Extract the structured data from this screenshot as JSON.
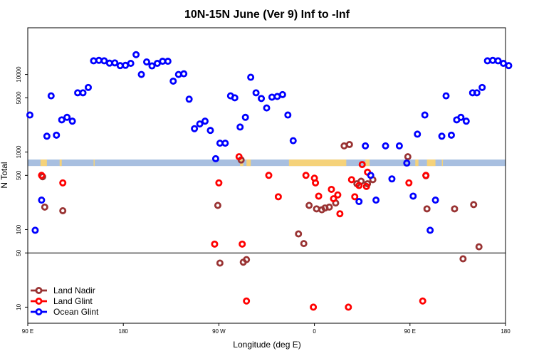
{
  "chart_data": {
    "type": "scatter",
    "title": "10N-15N June (Ver 9)   Inf to -Inf",
    "xlabel": "Longitude (deg E)",
    "ylabel": "N Total",
    "x_scale": "linear",
    "y_scale": "log",
    "xlim": [
      90,
      540
    ],
    "ylim": [
      6.2,
      40000
    ],
    "x_ticks": [
      {
        "value": 90,
        "label": "90 E"
      },
      {
        "value": 180,
        "label": "180"
      },
      {
        "value": 270,
        "label": "90 W"
      },
      {
        "value": 360,
        "label": "0"
      },
      {
        "value": 450,
        "label": "90 E"
      },
      {
        "value": 540,
        "label": "180"
      }
    ],
    "y_ticks": [
      {
        "value": 10,
        "label": "10"
      },
      {
        "value": 50,
        "label": "50"
      },
      {
        "value": 100,
        "label": "100"
      },
      {
        "value": 500,
        "label": "500"
      },
      {
        "value": 1000,
        "label": "1000"
      },
      {
        "value": 5000,
        "label": "5000"
      },
      {
        "value": 10000,
        "label": "10000"
      }
    ],
    "reference_line_y": 50,
    "grid": false,
    "legend_position": "bottom-left",
    "series": [
      {
        "name": "Land Nadir",
        "color": "#993333",
        "points": [
          [
            104,
            480
          ],
          [
            106,
            195
          ],
          [
            123,
            175
          ],
          [
            269,
            205
          ],
          [
            271,
            37
          ],
          [
            291,
            790
          ],
          [
            293,
            38
          ],
          [
            296,
            41
          ],
          [
            345,
            88
          ],
          [
            350,
            66
          ],
          [
            355,
            205
          ],
          [
            362,
            185
          ],
          [
            367,
            180
          ],
          [
            370,
            190
          ],
          [
            374,
            195
          ],
          [
            380,
            220
          ],
          [
            388,
            1200
          ],
          [
            393,
            1250
          ],
          [
            400,
            390
          ],
          [
            404,
            420
          ],
          [
            410,
            390
          ],
          [
            415,
            440
          ],
          [
            448,
            870
          ],
          [
            465,
            495
          ],
          [
            466,
            185
          ],
          [
            492,
            185
          ],
          [
            500,
            42
          ],
          [
            510,
            210
          ],
          [
            515,
            60
          ]
        ]
      },
      {
        "name": "Land Glint",
        "color": "#ff0000",
        "points": [
          [
            103,
            500
          ],
          [
            123,
            400
          ],
          [
            266,
            65
          ],
          [
            270,
            400
          ],
          [
            289,
            870
          ],
          [
            292,
            65
          ],
          [
            296,
            12
          ],
          [
            317,
            500
          ],
          [
            326,
            265
          ],
          [
            352,
            500
          ],
          [
            359,
            10
          ],
          [
            360,
            460
          ],
          [
            361,
            400
          ],
          [
            364,
            270
          ],
          [
            376,
            330
          ],
          [
            378,
            250
          ],
          [
            382,
            280
          ],
          [
            384,
            160
          ],
          [
            392,
            10
          ],
          [
            395,
            440
          ],
          [
            398,
            265
          ],
          [
            402,
            370
          ],
          [
            405,
            690
          ],
          [
            409,
            360
          ],
          [
            410,
            550
          ],
          [
            449,
            400
          ],
          [
            462,
            12
          ],
          [
            465,
            500
          ]
        ]
      },
      {
        "name": "Ocean Glint",
        "color": "#0000ff",
        "points": [
          [
            92,
            3000
          ],
          [
            97,
            98
          ],
          [
            103,
            240
          ],
          [
            108,
            1600
          ],
          [
            112,
            5300
          ],
          [
            117,
            1650
          ],
          [
            122,
            2600
          ],
          [
            127,
            2800
          ],
          [
            132,
            2500
          ],
          [
            137,
            5800
          ],
          [
            142,
            5800
          ],
          [
            147,
            6800
          ],
          [
            152,
            15000
          ],
          [
            157,
            15200
          ],
          [
            162,
            15000
          ],
          [
            167,
            14000
          ],
          [
            172,
            14100
          ],
          [
            177,
            13000
          ],
          [
            182,
            13100
          ],
          [
            187,
            13900
          ],
          [
            192,
            18000
          ],
          [
            197,
            10000
          ],
          [
            202,
            14500
          ],
          [
            207,
            12900
          ],
          [
            212,
            13900
          ],
          [
            217,
            14800
          ],
          [
            222,
            14800
          ],
          [
            227,
            8200
          ],
          [
            232,
            10000
          ],
          [
            237,
            10200
          ],
          [
            242,
            4800
          ],
          [
            247,
            2000
          ],
          [
            252,
            2300
          ],
          [
            257,
            2500
          ],
          [
            262,
            1900
          ],
          [
            267,
            820
          ],
          [
            271,
            1300
          ],
          [
            276,
            1300
          ],
          [
            281,
            5300
          ],
          [
            285,
            5000
          ],
          [
            290,
            2100
          ],
          [
            295,
            2800
          ],
          [
            300,
            9200
          ],
          [
            305,
            5800
          ],
          [
            310,
            4900
          ],
          [
            315,
            3700
          ],
          [
            320,
            5100
          ],
          [
            325,
            5200
          ],
          [
            330,
            5500
          ],
          [
            335,
            3000
          ],
          [
            340,
            1400
          ],
          [
            402,
            230
          ],
          [
            408,
            1200
          ],
          [
            413,
            500
          ],
          [
            418,
            240
          ],
          [
            427,
            1200
          ],
          [
            433,
            450
          ],
          [
            440,
            1200
          ],
          [
            447,
            720
          ],
          [
            453,
            270
          ],
          [
            457,
            1700
          ],
          [
            464,
            3000
          ],
          [
            469,
            98
          ],
          [
            474,
            240
          ],
          [
            480,
            1600
          ],
          [
            484,
            5300
          ],
          [
            489,
            1650
          ],
          [
            494,
            2600
          ],
          [
            498,
            2800
          ],
          [
            503,
            2500
          ],
          [
            509,
            5800
          ],
          [
            513,
            5800
          ],
          [
            518,
            6800
          ],
          [
            523,
            15000
          ],
          [
            528,
            15200
          ],
          [
            533,
            15000
          ],
          [
            538,
            13900
          ],
          [
            543,
            13000
          ]
        ]
      }
    ],
    "land_mask_band": {
      "color_ocean": "#a8bfe0",
      "color_land": "#f5d27a"
    }
  }
}
